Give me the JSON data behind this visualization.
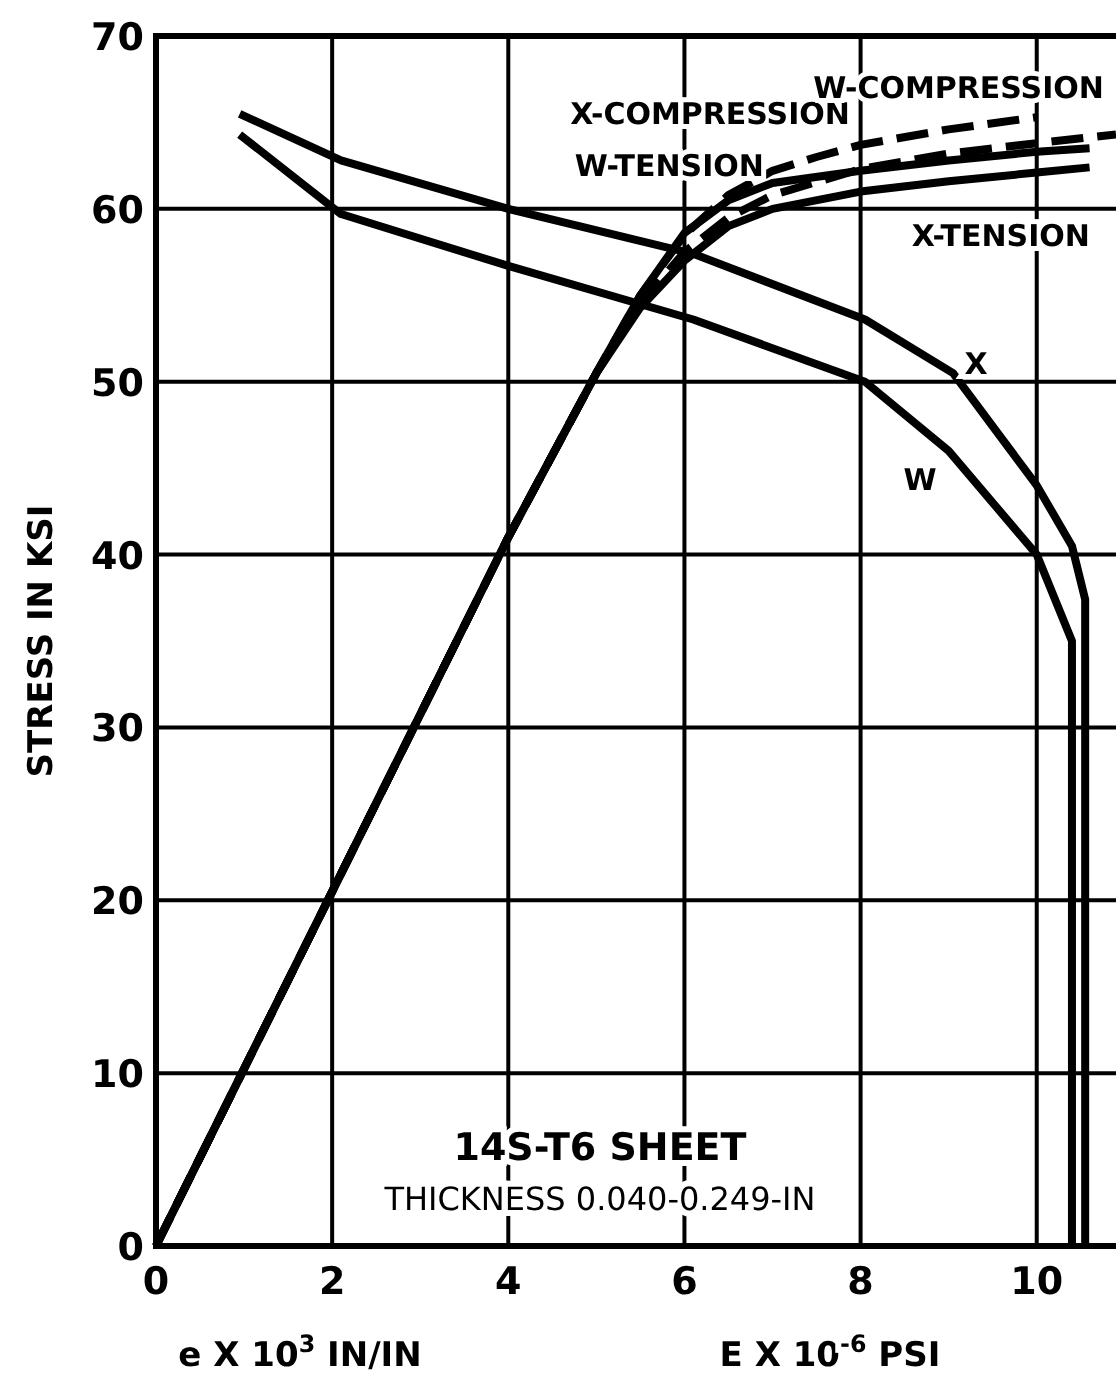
{
  "chart_data": {
    "type": "line",
    "ylabel": "STRESS IN KSI",
    "xlabel": "e X 10$^{3}$ IN/IN",
    "xlim": [
      0,
      10.9
    ],
    "ylim": [
      0,
      70
    ],
    "xticks": [
      0,
      2,
      4,
      6,
      8,
      10
    ],
    "yticks": [
      0,
      10,
      20,
      30,
      40,
      50,
      60,
      70
    ],
    "grid": true,
    "marker": "none",
    "annotations": [
      "E X 10$^{-6}$ PSI",
      "14S-T6 SHEET",
      "THICKNESS 0.040-0.249-IN"
    ],
    "series": [
      {
        "name": "X-COMPRESSION",
        "color": "#000000",
        "line_style": "dashed",
        "x": [
          0,
          2,
          4,
          5,
          5.5,
          6,
          6.5,
          7,
          7.5,
          8,
          9,
          10
        ],
        "values": [
          0,
          20.5,
          41,
          50.5,
          55,
          58.5,
          60.8,
          62.2,
          63,
          63.7,
          64.6,
          65.3
        ]
      },
      {
        "name": "W-COMPRESSION",
        "color": "#000000",
        "line_style": "dashed",
        "x": [
          0,
          2,
          4,
          5,
          5.5,
          6,
          6.5,
          7,
          8,
          9,
          10,
          10.9
        ],
        "values": [
          0,
          20.5,
          41,
          50.5,
          54.5,
          57.5,
          59.5,
          60.8,
          62.3,
          63.2,
          63.8,
          64.3
        ]
      },
      {
        "name": "W-TENSION",
        "color": "#000000",
        "line_style": "solid",
        "x": [
          0,
          2,
          4,
          5,
          5.5,
          6,
          6.5,
          7,
          8,
          9,
          10,
          10.6
        ],
        "values": [
          0,
          20.5,
          41,
          50.5,
          55,
          58.6,
          60.5,
          61.5,
          62.2,
          62.8,
          63.3,
          63.5
        ]
      },
      {
        "name": "X-TENSION",
        "color": "#000000",
        "line_style": "solid",
        "x": [
          0,
          2,
          4,
          5,
          5.5,
          6,
          6.5,
          7,
          8,
          9,
          10,
          10.6
        ],
        "values": [
          0,
          20.5,
          41,
          50.5,
          54.3,
          57,
          59,
          60,
          61,
          61.6,
          62.1,
          62.4
        ]
      },
      {
        "name": "X",
        "color": "#000000",
        "line_style": "solid",
        "x": [
          0.95,
          2.1,
          4,
          6.1,
          8.05,
          9.05,
          10,
          10.4,
          10.55,
          10.55
        ],
        "values": [
          65.5,
          62.8,
          60,
          57.4,
          53.6,
          50.5,
          44,
          40.5,
          37.4,
          0
        ]
      },
      {
        "name": "W",
        "color": "#000000",
        "line_style": "solid",
        "x": [
          0.95,
          2.1,
          4,
          6.1,
          8.05,
          9,
          10,
          10.4,
          10.4
        ],
        "values": [
          64.3,
          59.7,
          56.7,
          53.6,
          50,
          46,
          40,
          35,
          0
        ]
      }
    ]
  }
}
